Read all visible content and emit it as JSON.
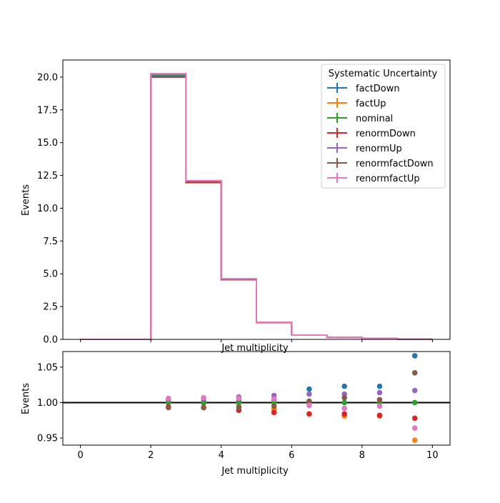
{
  "chart_data": [
    {
      "type": "step",
      "panel": "main",
      "xlabel": "Jet multiplicity",
      "ylabel": "Events",
      "xlim": [
        -0.5,
        10.5
      ],
      "ylim": [
        0,
        21.3
      ],
      "yticks": [
        "0.0",
        "2.5",
        "5.0",
        "7.5",
        "10.0",
        "12.5",
        "15.0",
        "17.5",
        "20.0"
      ],
      "bin_edges": [
        0,
        1,
        2,
        3,
        4,
        5,
        6,
        7,
        8,
        9,
        10
      ],
      "legend": {
        "title": "Systematic Uncertainty",
        "placement": "top-right"
      },
      "series": [
        {
          "name": "factDown",
          "color": "#1f77b4",
          "values": [
            0,
            0,
            20.1,
            12.0,
            4.58,
            1.3,
            0.33,
            0.14,
            0.07,
            0.02
          ]
        },
        {
          "name": "factUp",
          "color": "#ff7f0e",
          "values": [
            0,
            0,
            20.2,
            12.05,
            4.58,
            1.3,
            0.33,
            0.14,
            0.07,
            0.02
          ]
        },
        {
          "name": "nominal",
          "color": "#2ca02c",
          "values": [
            0,
            0,
            20.15,
            12.05,
            4.58,
            1.3,
            0.33,
            0.14,
            0.07,
            0.02
          ]
        },
        {
          "name": "renormDown",
          "color": "#d62728",
          "values": [
            0,
            0,
            20.0,
            12.0,
            4.55,
            1.28,
            0.33,
            0.14,
            0.07,
            0.02
          ]
        },
        {
          "name": "renormUp",
          "color": "#9467bd",
          "values": [
            0,
            0,
            20.25,
            12.1,
            4.62,
            1.31,
            0.33,
            0.14,
            0.07,
            0.02
          ]
        },
        {
          "name": "renormfactDown",
          "color": "#8c564b",
          "values": [
            0,
            0,
            20.0,
            11.95,
            4.55,
            1.29,
            0.33,
            0.14,
            0.07,
            0.02
          ]
        },
        {
          "name": "renormfactUp",
          "color": "#e377c2",
          "values": [
            0,
            0,
            20.25,
            12.1,
            4.62,
            1.31,
            0.33,
            0.14,
            0.07,
            0.02
          ]
        }
      ]
    },
    {
      "type": "scatter",
      "panel": "ratio",
      "xlabel": "Jet multiplicity",
      "ylabel": "Events",
      "xlim": [
        -0.5,
        10.5
      ],
      "ylim": [
        0.94,
        1.072
      ],
      "xticks": [
        "0",
        "2",
        "4",
        "6",
        "8",
        "10"
      ],
      "yticks": [
        "0.95",
        "1.00",
        "1.05"
      ],
      "reference_line": 1.0,
      "x": [
        2.5,
        3.5,
        4.5,
        5.5,
        6.5,
        7.5,
        8.5,
        9.5
      ],
      "series": [
        {
          "name": "factDown",
          "color": "#1f77b4",
          "values": [
            1.001,
            1.001,
            1.002,
            1.004,
            1.019,
            1.023,
            1.023,
            1.066
          ]
        },
        {
          "name": "factUp",
          "color": "#ff7f0e",
          "values": [
            1.0,
            0.999,
            0.995,
            0.991,
            0.984,
            0.981,
            0.981,
            0.947
          ]
        },
        {
          "name": "nominal",
          "color": "#2ca02c",
          "values": [
            1.0,
            1.0,
            1.0,
            1.0,
            1.0,
            1.0,
            1.0,
            1.0
          ]
        },
        {
          "name": "renormDown",
          "color": "#d62728",
          "values": [
            0.994,
            0.993,
            0.989,
            0.986,
            0.984,
            0.984,
            0.982,
            0.978
          ]
        },
        {
          "name": "renormUp",
          "color": "#9467bd",
          "values": [
            1.005,
            1.006,
            1.008,
            1.01,
            1.012,
            1.012,
            1.014,
            1.017
          ]
        },
        {
          "name": "renormfactDown",
          "color": "#8c564b",
          "values": [
            0.993,
            0.993,
            0.993,
            0.995,
            1.002,
            1.007,
            1.004,
            1.042
          ]
        },
        {
          "name": "renormfactUp",
          "color": "#e377c2",
          "values": [
            1.006,
            1.007,
            1.006,
            1.005,
            0.996,
            0.992,
            0.995,
            0.964
          ]
        }
      ]
    }
  ]
}
